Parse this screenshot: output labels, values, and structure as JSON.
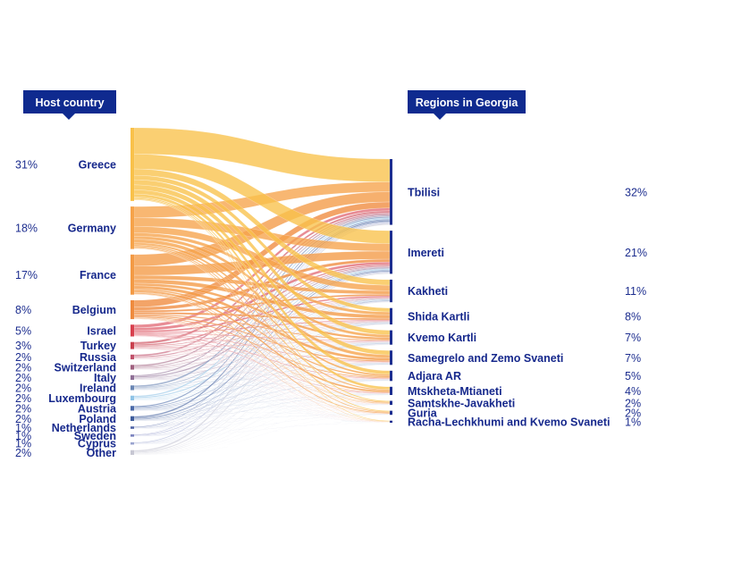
{
  "headers": {
    "left": "Host country",
    "right": "Regions in Georgia"
  },
  "colors": {
    "header_bg": "#0f2a8f",
    "label": "#16288c"
  },
  "chart_data": {
    "type": "sankey",
    "sources": [
      {
        "name": "Greece",
        "pct_label": "31%",
        "value": 31,
        "color": "#f9c14a"
      },
      {
        "name": "Germany",
        "pct_label": "18%",
        "value": 18,
        "color": "#f6a34a"
      },
      {
        "name": "France",
        "pct_label": "17%",
        "value": 17,
        "color": "#f39a45"
      },
      {
        "name": "Belgium",
        "pct_label": "8%",
        "value": 8,
        "color": "#ef8b3e"
      },
      {
        "name": "Israel",
        "pct_label": "5%",
        "value": 5,
        "color": "#d8404e"
      },
      {
        "name": "Turkey",
        "pct_label": "3%",
        "value": 3,
        "color": "#c9404e"
      },
      {
        "name": "Russia",
        "pct_label": "2%",
        "value": 2,
        "color": "#c0506a"
      },
      {
        "name": "Switzerland",
        "pct_label": "2%",
        "value": 2,
        "color": "#a0607f"
      },
      {
        "name": "Italy",
        "pct_label": "2%",
        "value": 2,
        "color": "#8f6f96"
      },
      {
        "name": "Ireland",
        "pct_label": "2%",
        "value": 2,
        "color": "#6a86b4"
      },
      {
        "name": "Luxembourg",
        "pct_label": "2%",
        "value": 2,
        "color": "#8fc3e6"
      },
      {
        "name": "Austria",
        "pct_label": "2%",
        "value": 2,
        "color": "#4b6aa8"
      },
      {
        "name": "Poland",
        "pct_label": "2%",
        "value": 2,
        "color": "#3f5d9c"
      },
      {
        "name": "Netherlands",
        "pct_label": "1%",
        "value": 1,
        "color": "#5064a6"
      },
      {
        "name": "Sweden",
        "pct_label": "1%",
        "value": 1,
        "color": "#7c84bf"
      },
      {
        "name": "Cyprus",
        "pct_label": "1%",
        "value": 1,
        "color": "#9aa4cf"
      },
      {
        "name": "Other",
        "pct_label": "2%",
        "value": 2,
        "color": "#c7c7d3"
      }
    ],
    "targets": [
      {
        "name": "Tbilisi",
        "pct_label": "32%",
        "value": 32
      },
      {
        "name": "Imereti",
        "pct_label": "21%",
        "value": 21
      },
      {
        "name": "Kakheti",
        "pct_label": "11%",
        "value": 11
      },
      {
        "name": "Shida Kartli",
        "pct_label": "8%",
        "value": 8
      },
      {
        "name": "Kvemo Kartli",
        "pct_label": "7%",
        "value": 7
      },
      {
        "name": "Samegrelo and Zemo Svaneti",
        "pct_label": "7%",
        "value": 7
      },
      {
        "name": "Adjara AR",
        "pct_label": "5%",
        "value": 5
      },
      {
        "name": "Mtskheta-Mtianeti",
        "pct_label": "4%",
        "value": 4
      },
      {
        "name": "Samtskhe-Javakheti",
        "pct_label": "2%",
        "value": 2
      },
      {
        "name": "Guria",
        "pct_label": "2%",
        "value": 2
      },
      {
        "name": "Racha-Lechkhumi and Kvemo Svaneti",
        "pct_label": "1%",
        "value": 1
      }
    ]
  }
}
